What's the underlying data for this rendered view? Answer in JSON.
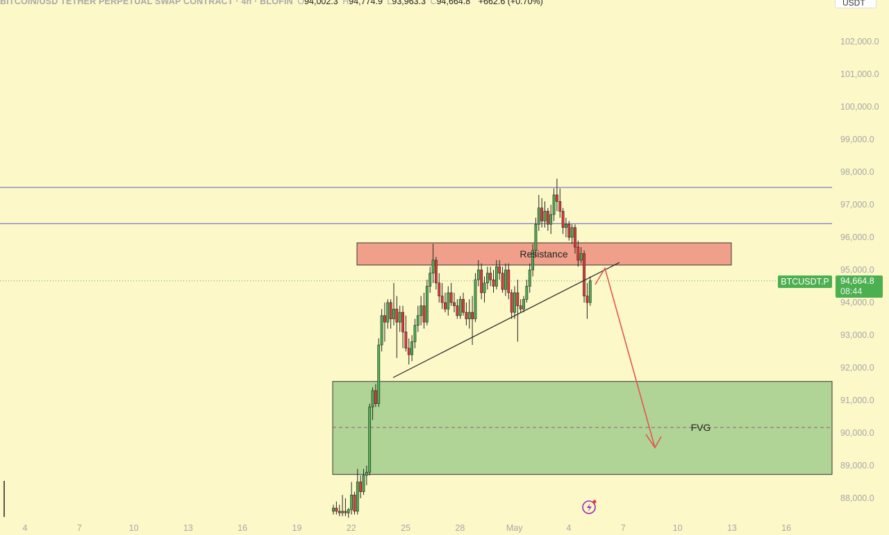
{
  "header": {
    "symbol_text": "BITCOIN/USD TETHER PERPETUAL SWAP CONTRACT · 4h · BLOFIN",
    "open_label": "O",
    "open": "94,002.3",
    "high_label": "H",
    "high": "94,774.9",
    "low_label": "L",
    "low": "93,963.3",
    "close_label": "C",
    "close": "94,664.8",
    "change": "+662.6 (+0.70%)"
  },
  "currency_label": "USDT",
  "last_price": {
    "symbol": "BTCUSDT.P",
    "price": "94,664.8",
    "countdown": "08:44"
  },
  "colors": {
    "background": "#fcf8c8",
    "up": "#4caf50",
    "down": "#e53935",
    "resistance_fill": "#f0a08a",
    "fvg_fill": "#b0d495",
    "horizontal_line": "#5c5cc8",
    "arrow": "#e05555"
  },
  "chart_data": {
    "type": "candlestick",
    "timeframe": "4h",
    "y_ticks": [
      "102,000.0",
      "101,000.0",
      "100,000.0",
      "99,000.0",
      "98,000.0",
      "97,000.0",
      "96,000.0",
      "95,000.0",
      "94,000.0",
      "93,000.0",
      "92,000.0",
      "91,000.0",
      "90,000.0",
      "89,000.0",
      "88,000.0"
    ],
    "x_ticks": [
      "4",
      "7",
      "10",
      "13",
      "16",
      "19",
      "22",
      "25",
      "28",
      "May",
      "4",
      "7",
      "10",
      "13",
      "16"
    ],
    "ylim": [
      87400,
      103000
    ],
    "horizontal_lines": [
      97530,
      96420
    ],
    "zones": [
      {
        "label": "Resistance",
        "top": 95830,
        "bottom": 95150
      },
      {
        "label": "FVG",
        "top": 91580,
        "bottom": 88730,
        "mid": 90170
      }
    ],
    "trendline_from": {
      "date": "Apr 24",
      "price": 91700
    },
    "trendline_to": {
      "date": "May 5",
      "price": 95230
    },
    "projection_peak": 95050,
    "projection_target": 89550,
    "candles": [
      [
        87600,
        87800,
        87500,
        87700
      ],
      [
        87700,
        87900,
        87500,
        87600
      ],
      [
        87600,
        87800,
        87450,
        87550
      ],
      [
        87550,
        88100,
        87450,
        87600
      ],
      [
        87600,
        88000,
        87450,
        87550
      ],
      [
        87550,
        87700,
        87400,
        87650
      ],
      [
        87650,
        88500,
        87500,
        88100
      ],
      [
        88100,
        88200,
        87500,
        87600
      ],
      [
        87600,
        88900,
        87500,
        88500
      ],
      [
        88500,
        88700,
        88000,
        88200
      ],
      [
        88200,
        88900,
        88100,
        88700
      ],
      [
        88700,
        89000,
        88400,
        88800
      ],
      [
        88800,
        90900,
        88700,
        90800
      ],
      [
        90800,
        91400,
        90400,
        91300
      ],
      [
        91300,
        91500,
        90800,
        90900
      ],
      [
        90900,
        92900,
        90800,
        92700
      ],
      [
        92700,
        93800,
        92500,
        93600
      ],
      [
        93600,
        94000,
        92800,
        93400
      ],
      [
        93400,
        94100,
        93200,
        94000
      ],
      [
        94000,
        94100,
        93200,
        93500
      ],
      [
        93500,
        94600,
        93300,
        93800
      ],
      [
        93800,
        94200,
        92300,
        93400
      ],
      [
        93400,
        93900,
        93100,
        93700
      ],
      [
        93700,
        93900,
        92600,
        93100
      ],
      [
        93100,
        93600,
        92500,
        92600
      ],
      [
        92600,
        92900,
        92100,
        92400
      ],
      [
        92400,
        93000,
        92200,
        92800
      ],
      [
        92800,
        93500,
        92600,
        93300
      ],
      [
        93300,
        93900,
        93100,
        93600
      ],
      [
        93600,
        94200,
        93300,
        93900
      ],
      [
        93900,
        94300,
        93200,
        93400
      ],
      [
        93400,
        94700,
        93300,
        94500
      ],
      [
        94500,
        95100,
        94300,
        94900
      ],
      [
        94900,
        95800,
        94600,
        95300
      ],
      [
        95300,
        95400,
        94400,
        94600
      ],
      [
        94600,
        94900,
        94000,
        94200
      ],
      [
        94200,
        94600,
        93800,
        94000
      ],
      [
        94000,
        94300,
        93700,
        93800
      ],
      [
        93800,
        94500,
        93600,
        94300
      ],
      [
        94300,
        94600,
        93900,
        94000
      ],
      [
        94000,
        94300,
        93700,
        93900
      ],
      [
        93900,
        94100,
        93500,
        93600
      ],
      [
        93600,
        94200,
        93500,
        94100
      ],
      [
        94100,
        94300,
        93600,
        93700
      ],
      [
        93700,
        94000,
        93300,
        93500
      ],
      [
        93500,
        94100,
        93200,
        93700
      ],
      [
        93700,
        94200,
        92700,
        93500
      ],
      [
        93500,
        94900,
        93400,
        94700
      ],
      [
        94700,
        95300,
        94500,
        95000
      ],
      [
        95000,
        95200,
        94100,
        94300
      ],
      [
        94300,
        94800,
        94000,
        94600
      ],
      [
        94600,
        95100,
        94400,
        94900
      ],
      [
        94900,
        95100,
        94500,
        94700
      ],
      [
        94700,
        95000,
        94300,
        94500
      ],
      [
        94500,
        95300,
        94400,
        95100
      ],
      [
        95100,
        95300,
        94700,
        94900
      ],
      [
        94900,
        95100,
        94300,
        94400
      ],
      [
        94400,
        95200,
        94200,
        95000
      ],
      [
        95000,
        95200,
        94100,
        94300
      ],
      [
        94300,
        94400,
        93500,
        93700
      ],
      [
        93700,
        94500,
        93500,
        94300
      ],
      [
        94300,
        94700,
        92800,
        93900
      ],
      [
        93900,
        94100,
        93700,
        93800
      ],
      [
        93800,
        94200,
        93700,
        94100
      ],
      [
        94100,
        94700,
        94000,
        94500
      ],
      [
        94500,
        95200,
        94300,
        95000
      ],
      [
        95000,
        95800,
        94800,
        95600
      ],
      [
        95600,
        96600,
        95400,
        96400
      ],
      [
        96400,
        97300,
        96200,
        96900
      ],
      [
        96900,
        97200,
        96300,
        96500
      ],
      [
        96500,
        97100,
        96300,
        96800
      ],
      [
        96800,
        96900,
        96200,
        96400
      ],
      [
        96400,
        97000,
        96100,
        96700
      ],
      [
        96700,
        97500,
        96500,
        97300
      ],
      [
        97300,
        97800,
        96800,
        97100
      ],
      [
        97100,
        97500,
        96600,
        96800
      ],
      [
        96800,
        96900,
        96100,
        96300
      ],
      [
        96300,
        96600,
        96000,
        96400
      ],
      [
        96400,
        96500,
        95900,
        96000
      ],
      [
        96000,
        96400,
        95800,
        96300
      ],
      [
        96300,
        96400,
        95500,
        95700
      ],
      [
        95700,
        95900,
        95100,
        95300
      ],
      [
        95300,
        95700,
        95200,
        95500
      ],
      [
        95500,
        95600,
        94000,
        94200
      ],
      [
        94200,
        94600,
        93500,
        94000
      ],
      [
        94000,
        94800,
        93900,
        94665
      ]
    ]
  }
}
